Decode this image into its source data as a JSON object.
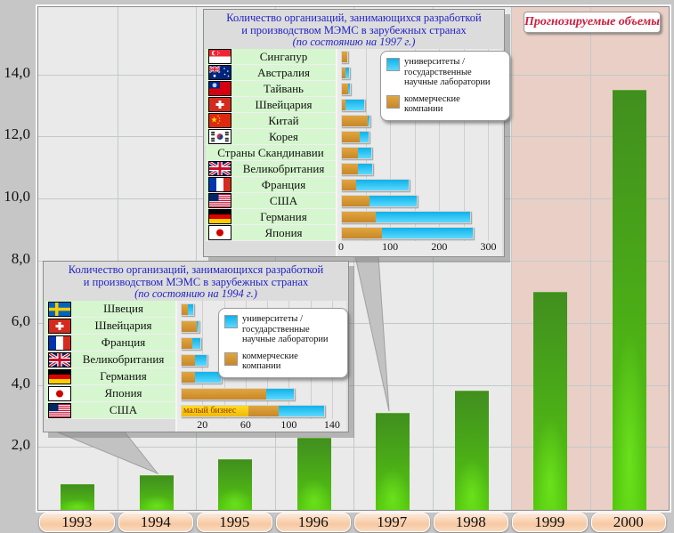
{
  "colors": {
    "page_bg": "#c6c6c6",
    "plot_bg": "#eaeaea",
    "forecast_bg": "#e9cfc6",
    "bar_green": "#4cb314",
    "commercial_orange": "#d09231",
    "universities_cyan": "#27c0f2",
    "small_business_yellow": "#ffd41c",
    "title_blue": "#2323c8",
    "forecast_label_red": "#cc1f3f",
    "country_row_green": "#d6f6cf"
  },
  "forecast": {
    "label": "Прогнозируемые объемы"
  },
  "chart_data": [
    {
      "id": "annual-volumes",
      "type": "bar",
      "title": "",
      "xlabel": "",
      "ylabel": "",
      "categories": [
        "1993",
        "1994",
        "1995",
        "1996",
        "1997",
        "1998",
        "1999",
        "2000"
      ],
      "values": [
        0.8,
        1.1,
        1.6,
        2.3,
        3.1,
        3.8,
        7.0,
        13.5
      ],
      "ylim": [
        0,
        16.2
      ],
      "yticks": [
        2,
        4,
        6,
        8,
        10,
        12,
        14
      ],
      "ytick_labels": [
        "2,0",
        "4,0",
        "6,0",
        "8,0",
        "10,0",
        "12,0",
        "14,0"
      ],
      "grid": true,
      "forecast_categories": [
        "1999",
        "2000"
      ],
      "annotation": "Прогнозируемые объемы"
    },
    {
      "id": "mems-orgs-1997",
      "type": "bar",
      "orientation": "horizontal",
      "stacked": true,
      "title_lines": [
        "Количество организаций, занимающихся разработкой",
        "и производством МЭМС в зарубежных странах",
        "(по состоянию на 1997 г.)"
      ],
      "categories": [
        "Сингапур",
        "Австралия",
        "Тайвань",
        "Швейцария",
        "Китай",
        "Корея",
        "Страны Скандинавии",
        "Великобритания",
        "Франция",
        "США",
        "Германия",
        "Япония"
      ],
      "flags": [
        "singapore",
        "australia",
        "taiwan",
        "switzerland",
        "china",
        "south-korea",
        null,
        "uk",
        "france",
        "usa",
        "germany",
        "japan"
      ],
      "series": [
        {
          "name": "коммерческие компании",
          "color": "orange",
          "values": [
            10,
            8,
            13,
            8,
            52,
            36,
            33,
            32,
            29,
            56,
            68,
            82
          ]
        },
        {
          "name": "университеты / государственные научные лаборатории",
          "color": "cyan",
          "values": [
            1,
            6,
            3,
            38,
            4,
            18,
            27,
            29,
            107,
            97,
            193,
            185
          ]
        }
      ],
      "xlim": [
        0,
        310
      ],
      "xticks": [
        0,
        100,
        200,
        300
      ],
      "legend_items": [
        {
          "swatch": "cyan",
          "lines": [
            "университеты /",
            "государственные",
            "научные лаборатории"
          ]
        },
        {
          "swatch": "orange",
          "lines": [
            "коммерческие",
            "компании"
          ]
        }
      ]
    },
    {
      "id": "mems-orgs-1994",
      "type": "bar",
      "orientation": "horizontal",
      "stacked": true,
      "title_lines": [
        "Количество организаций, занимающихся разработкой",
        "и производством МЭМС в зарубежных странах",
        "(по состоянию на 1994 г.)"
      ],
      "categories": [
        "Швеция",
        "Швейцария",
        "Франция",
        "Великобритания",
        "Германия",
        "Япония",
        "США"
      ],
      "flags": [
        "sweden",
        "switzerland",
        "france",
        "uk",
        "germany",
        "japan",
        "usa"
      ],
      "series": [
        {
          "name": "малый бизнес",
          "color": "yellow",
          "on_bar_text": "малый бизнес",
          "values": [
            0,
            0,
            0,
            0,
            0,
            0,
            62
          ]
        },
        {
          "name": "коммерческие компании",
          "color": "orange",
          "values": [
            6,
            14,
            10,
            12,
            12,
            78,
            28
          ]
        },
        {
          "name": "университеты / государственные научные лаборатории",
          "color": "cyan",
          "values": [
            5,
            2,
            7,
            11,
            24,
            26,
            42
          ]
        }
      ],
      "xlim": [
        0,
        145
      ],
      "xticks": [
        20,
        60,
        100,
        140
      ],
      "legend_items": [
        {
          "swatch": "cyan",
          "lines": [
            "университеты /",
            "государственные",
            "научные лаборатории"
          ]
        },
        {
          "swatch": "orange",
          "lines": [
            "коммерческие",
            "компании"
          ]
        }
      ]
    }
  ]
}
